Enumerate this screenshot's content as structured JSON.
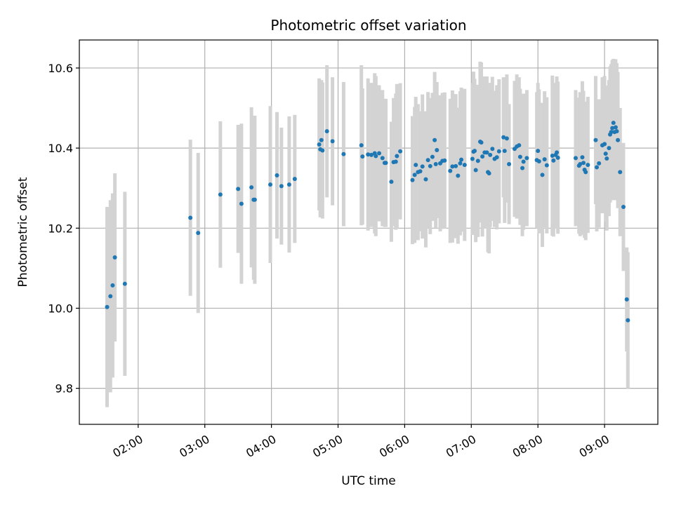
{
  "chart_data": {
    "type": "scatter",
    "title": "Photometric offset variation",
    "xlabel": "UTC time",
    "ylabel": "Photometric offset",
    "x_ticks": [
      "02:00",
      "03:00",
      "04:00",
      "05:00",
      "06:00",
      "07:00",
      "08:00",
      "09:00"
    ],
    "y_ticks": [
      "9.8",
      "10.0",
      "10.2",
      "10.4",
      "10.6"
    ],
    "xlim": [
      "01:07",
      "09:48"
    ],
    "ylim": [
      9.71,
      10.67
    ],
    "grid": true,
    "point_color": "#1f77b4",
    "errorbar_color": "#d3d3d3",
    "points": [
      {
        "x": "01:32",
        "y": 10.003,
        "err": 0.25
      },
      {
        "x": "01:35",
        "y": 10.03,
        "err": 0.24
      },
      {
        "x": "01:37",
        "y": 10.057,
        "err": 0.23
      },
      {
        "x": "01:39",
        "y": 10.127,
        "err": 0.21
      },
      {
        "x": "01:48",
        "y": 10.061,
        "err": 0.23
      },
      {
        "x": "02:47",
        "y": 10.226,
        "err": 0.195
      },
      {
        "x": "02:54",
        "y": 10.188,
        "err": 0.2
      },
      {
        "x": "03:14",
        "y": 10.284,
        "err": 0.183
      },
      {
        "x": "03:30",
        "y": 10.298,
        "err": 0.16
      },
      {
        "x": "03:33",
        "y": 10.261,
        "err": 0.2
      },
      {
        "x": "03:42",
        "y": 10.302,
        "err": 0.2
      },
      {
        "x": "03:44",
        "y": 10.271,
        "err": 0.2
      },
      {
        "x": "03:45",
        "y": 10.271,
        "err": 0.21
      },
      {
        "x": "03:59",
        "y": 10.309,
        "err": 0.196
      },
      {
        "x": "04:05",
        "y": 10.332,
        "err": 0.158
      },
      {
        "x": "04:09",
        "y": 10.305,
        "err": 0.146
      },
      {
        "x": "04:16",
        "y": 10.309,
        "err": 0.17
      },
      {
        "x": "04:21",
        "y": 10.323,
        "err": 0.16
      },
      {
        "x": "04:43",
        "y": 10.409,
        "err": 0.165
      },
      {
        "x": "04:44",
        "y": 10.397,
        "err": 0.17
      },
      {
        "x": "04:45",
        "y": 10.42,
        "err": 0.15
      },
      {
        "x": "04:46",
        "y": 10.394,
        "err": 0.17
      },
      {
        "x": "04:50",
        "y": 10.442,
        "err": 0.165
      },
      {
        "x": "04:55",
        "y": 10.417,
        "err": 0.16
      },
      {
        "x": "05:05",
        "y": 10.385,
        "err": 0.18
      },
      {
        "x": "05:21",
        "y": 10.407,
        "err": 0.2
      },
      {
        "x": "05:22",
        "y": 10.379,
        "err": 0.17
      },
      {
        "x": "05:27",
        "y": 10.384,
        "err": 0.19
      },
      {
        "x": "05:30",
        "y": 10.383,
        "err": 0.18
      },
      {
        "x": "05:33",
        "y": 10.387,
        "err": 0.2
      },
      {
        "x": "05:34",
        "y": 10.38,
        "err": 0.2
      },
      {
        "x": "05:37",
        "y": 10.387,
        "err": 0.17
      },
      {
        "x": "05:40",
        "y": 10.375,
        "err": 0.17
      },
      {
        "x": "05:42",
        "y": 10.363,
        "err": 0.16
      },
      {
        "x": "05:43",
        "y": 10.363,
        "err": 0.16
      },
      {
        "x": "05:48",
        "y": 10.316,
        "err": 0.15
      },
      {
        "x": "05:50",
        "y": 10.365,
        "err": 0.16
      },
      {
        "x": "05:52",
        "y": 10.366,
        "err": 0.17
      },
      {
        "x": "05:53",
        "y": 10.38,
        "err": 0.18
      },
      {
        "x": "05:56",
        "y": 10.392,
        "err": 0.17
      },
      {
        "x": "06:07",
        "y": 10.32,
        "err": 0.16
      },
      {
        "x": "06:09",
        "y": 10.333,
        "err": 0.17
      },
      {
        "x": "06:10",
        "y": 10.358,
        "err": 0.17
      },
      {
        "x": "06:12",
        "y": 10.34,
        "err": 0.17
      },
      {
        "x": "06:14",
        "y": 10.342,
        "err": 0.15
      },
      {
        "x": "06:16",
        "y": 10.354,
        "err": 0.18
      },
      {
        "x": "06:19",
        "y": 10.322,
        "err": 0.17
      },
      {
        "x": "06:21",
        "y": 10.37,
        "err": 0.17
      },
      {
        "x": "06:23",
        "y": 10.355,
        "err": 0.17
      },
      {
        "x": "06:25",
        "y": 10.378,
        "err": 0.16
      },
      {
        "x": "06:27",
        "y": 10.42,
        "err": 0.17
      },
      {
        "x": "06:28",
        "y": 10.36,
        "err": 0.16
      },
      {
        "x": "06:29",
        "y": 10.395,
        "err": 0.17
      },
      {
        "x": "06:32",
        "y": 10.362,
        "err": 0.17
      },
      {
        "x": "06:34",
        "y": 10.368,
        "err": 0.17
      },
      {
        "x": "06:36",
        "y": 10.369,
        "err": 0.17
      },
      {
        "x": "06:41",
        "y": 10.343,
        "err": 0.18
      },
      {
        "x": "06:43",
        "y": 10.354,
        "err": 0.19
      },
      {
        "x": "06:46",
        "y": 10.355,
        "err": 0.18
      },
      {
        "x": "06:48",
        "y": 10.331,
        "err": 0.17
      },
      {
        "x": "06:50",
        "y": 10.362,
        "err": 0.18
      },
      {
        "x": "06:51",
        "y": 10.371,
        "err": 0.18
      },
      {
        "x": "06:54",
        "y": 10.358,
        "err": 0.19
      },
      {
        "x": "07:01",
        "y": 10.373,
        "err": 0.19
      },
      {
        "x": "07:02",
        "y": 10.391,
        "err": 0.2
      },
      {
        "x": "07:03",
        "y": 10.393,
        "err": 0.18
      },
      {
        "x": "07:04",
        "y": 10.345,
        "err": 0.18
      },
      {
        "x": "07:06",
        "y": 10.368,
        "err": 0.19
      },
      {
        "x": "07:08",
        "y": 10.416,
        "err": 0.2
      },
      {
        "x": "07:09",
        "y": 10.414,
        "err": 0.2
      },
      {
        "x": "07:10",
        "y": 10.379,
        "err": 0.2
      },
      {
        "x": "07:12",
        "y": 10.389,
        "err": 0.19
      },
      {
        "x": "07:14",
        "y": 10.389,
        "err": 0.19
      },
      {
        "x": "07:15",
        "y": 10.34,
        "err": 0.2
      },
      {
        "x": "07:16",
        "y": 10.337,
        "err": 0.2
      },
      {
        "x": "07:17",
        "y": 10.383,
        "err": 0.18
      },
      {
        "x": "07:19",
        "y": 10.398,
        "err": 0.18
      },
      {
        "x": "07:21",
        "y": 10.373,
        "err": 0.17
      },
      {
        "x": "07:23",
        "y": 10.377,
        "err": 0.18
      },
      {
        "x": "07:25",
        "y": 10.392,
        "err": 0.18
      },
      {
        "x": "07:29",
        "y": 10.427,
        "err": 0.15
      },
      {
        "x": "07:30",
        "y": 10.393,
        "err": 0.18
      },
      {
        "x": "07:32",
        "y": 10.424,
        "err": 0.16
      },
      {
        "x": "07:34",
        "y": 10.36,
        "err": 0.15
      },
      {
        "x": "07:39",
        "y": 10.398,
        "err": 0.17
      },
      {
        "x": "07:41",
        "y": 10.404,
        "err": 0.18
      },
      {
        "x": "07:43",
        "y": 10.407,
        "err": 0.17
      },
      {
        "x": "07:44",
        "y": 10.378,
        "err": 0.17
      },
      {
        "x": "07:46",
        "y": 10.35,
        "err": 0.17
      },
      {
        "x": "07:47",
        "y": 10.366,
        "err": 0.17
      },
      {
        "x": "07:50",
        "y": 10.375,
        "err": 0.17
      },
      {
        "x": "07:59",
        "y": 10.37,
        "err": 0.17
      },
      {
        "x": "08:00",
        "y": 10.393,
        "err": 0.17
      },
      {
        "x": "08:01",
        "y": 10.367,
        "err": 0.18
      },
      {
        "x": "08:04",
        "y": 10.333,
        "err": 0.18
      },
      {
        "x": "08:06",
        "y": 10.372,
        "err": 0.17
      },
      {
        "x": "08:08",
        "y": 10.357,
        "err": 0.17
      },
      {
        "x": "08:13",
        "y": 10.381,
        "err": 0.2
      },
      {
        "x": "08:14",
        "y": 10.369,
        "err": 0.19
      },
      {
        "x": "08:16",
        "y": 10.383,
        "err": 0.18
      },
      {
        "x": "08:17",
        "y": 10.389,
        "err": 0.19
      },
      {
        "x": "08:18",
        "y": 10.376,
        "err": 0.19
      },
      {
        "x": "08:34",
        "y": 10.375,
        "err": 0.17
      },
      {
        "x": "08:37",
        "y": 10.356,
        "err": 0.17
      },
      {
        "x": "08:38",
        "y": 10.36,
        "err": 0.18
      },
      {
        "x": "08:40",
        "y": 10.377,
        "err": 0.19
      },
      {
        "x": "08:41",
        "y": 10.363,
        "err": 0.18
      },
      {
        "x": "08:42",
        "y": 10.346,
        "err": 0.17
      },
      {
        "x": "08:43",
        "y": 10.34,
        "err": 0.17
      },
      {
        "x": "08:45",
        "y": 10.358,
        "err": 0.17
      },
      {
        "x": "08:52",
        "y": 10.42,
        "err": 0.16
      },
      {
        "x": "08:53",
        "y": 10.352,
        "err": 0.16
      },
      {
        "x": "08:55",
        "y": 10.362,
        "err": 0.16
      },
      {
        "x": "08:58",
        "y": 10.407,
        "err": 0.17
      },
      {
        "x": "09:00",
        "y": 10.41,
        "err": 0.17
      },
      {
        "x": "09:01",
        "y": 10.386,
        "err": 0.17
      },
      {
        "x": "09:02",
        "y": 10.374,
        "err": 0.18
      },
      {
        "x": "09:04",
        "y": 10.4,
        "err": 0.17
      },
      {
        "x": "09:05",
        "y": 10.434,
        "err": 0.17
      },
      {
        "x": "09:06",
        "y": 10.44,
        "err": 0.17
      },
      {
        "x": "09:07",
        "y": 10.45,
        "err": 0.17
      },
      {
        "x": "09:08",
        "y": 10.463,
        "err": 0.16
      },
      {
        "x": "09:09",
        "y": 10.44,
        "err": 0.17
      },
      {
        "x": "09:10",
        "y": 10.452,
        "err": 0.17
      },
      {
        "x": "09:11",
        "y": 10.442,
        "err": 0.17
      },
      {
        "x": "09:12",
        "y": 10.42,
        "err": 0.17
      },
      {
        "x": "09:14",
        "y": 10.34,
        "err": 0.16
      },
      {
        "x": "09:17",
        "y": 10.253,
        "err": 0.16
      },
      {
        "x": "09:20",
        "y": 10.022,
        "err": 0.13
      },
      {
        "x": "09:21",
        "y": 9.97,
        "err": 0.17
      }
    ]
  }
}
